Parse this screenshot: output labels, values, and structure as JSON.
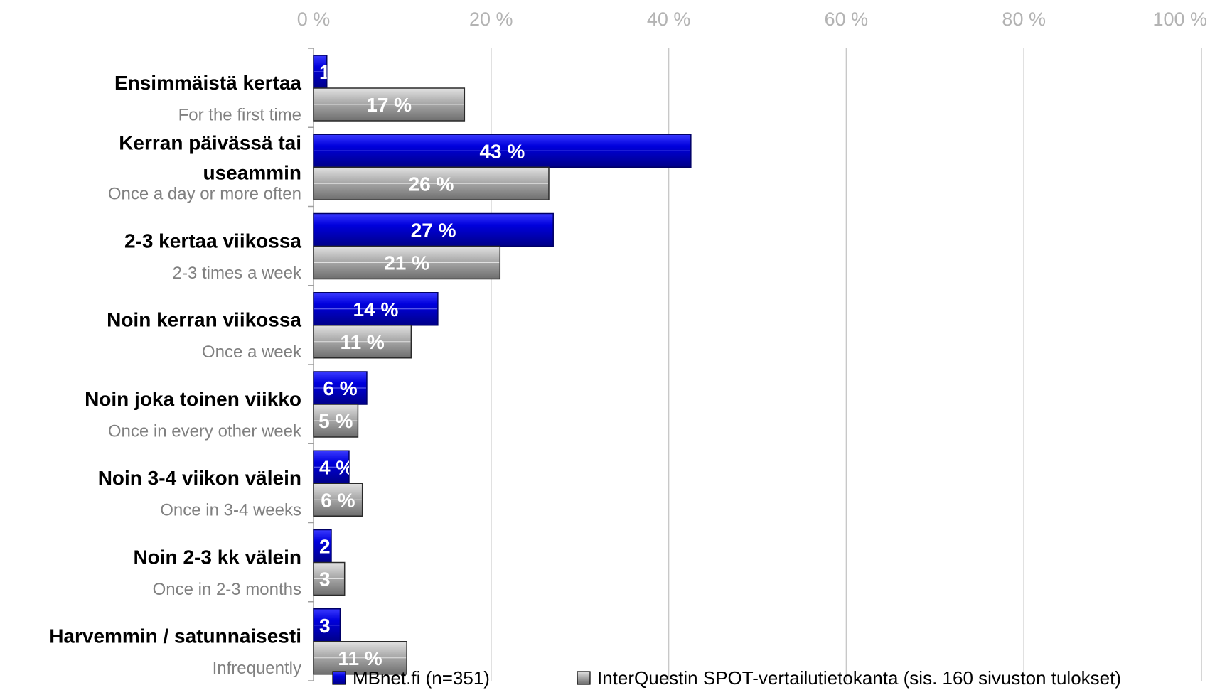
{
  "chart_data": {
    "type": "bar",
    "orientation": "horizontal",
    "categories": [
      {
        "fi": [
          "Ensimmäistä kertaa"
        ],
        "en": "For the first time"
      },
      {
        "fi": [
          "Kerran päivässä tai",
          "useammin"
        ],
        "en": "Once a day or more often"
      },
      {
        "fi": [
          "2-3 kertaa viikossa"
        ],
        "en": "2-3 times a week"
      },
      {
        "fi": [
          "Noin kerran viikossa"
        ],
        "en": "Once a week"
      },
      {
        "fi": [
          "Noin joka toinen viikko"
        ],
        "en": "Once in every other week"
      },
      {
        "fi": [
          "Noin 3-4 viikon välein"
        ],
        "en": "Once in 3-4 weeks"
      },
      {
        "fi": [
          "Noin 2-3 kk välein"
        ],
        "en": "Once in 2-3 months"
      },
      {
        "fi": [
          "Harvemmin / satunnaisesti"
        ],
        "en": "Infrequently"
      }
    ],
    "series": [
      {
        "name": "MBnet.fi (n=351)",
        "color": "#0000cc",
        "values": [
          1.5,
          42.5,
          27,
          14,
          6,
          4,
          2,
          3
        ],
        "labels": [
          "1",
          "43 %",
          "27 %",
          "14 %",
          "6 %",
          "4 %",
          "2",
          "3"
        ]
      },
      {
        "name": "InterQuestin SPOT-vertailutietokanta (sis. 160 sivuston tulokset)",
        "color": "#a6a6a6",
        "values": [
          17,
          26.5,
          21,
          11,
          5,
          5.5,
          3.5,
          10.5
        ],
        "labels": [
          "17 %",
          "26 %",
          "21 %",
          "11 %",
          "5 %",
          "6 %",
          "3",
          "11 %"
        ]
      }
    ],
    "xaxis": {
      "range": [
        0,
        100
      ],
      "ticks": [
        0,
        20,
        40,
        60,
        80,
        100
      ],
      "tick_labels": [
        "0 %",
        "20 %",
        "40 %",
        "60 %",
        "80 %",
        "100 %"
      ],
      "position": "top"
    },
    "grid": true,
    "legend": "bottom"
  }
}
